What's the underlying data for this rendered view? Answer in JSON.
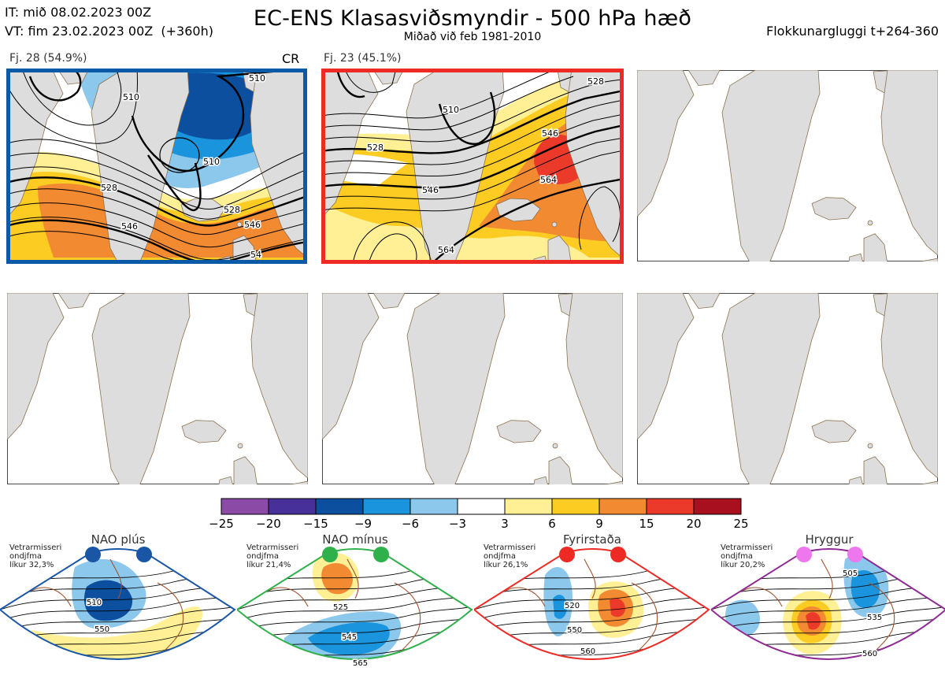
{
  "header": {
    "it_line": "IT: mið 08.02.2023 00Z",
    "vt_line": "VT: fim 23.02.2023 00Z  (+360h)",
    "title": "EC-ENS Klasasviðsmyndir - 500 hPa hæð",
    "subtitle": "Miðað við feb 1981-2010",
    "window": "Flokkunargluggi t+264-360"
  },
  "clusters": [
    {
      "label": "Fj. 28 (54.9%)",
      "regime": "CR",
      "border_color": "#0b5aa8",
      "contour_labels": [
        "510",
        "510",
        "510",
        "528",
        "528",
        "546",
        "546",
        "54"
      ]
    },
    {
      "label": "Fj. 23 (45.1%)",
      "regime": "",
      "border_color": "#ee2a24",
      "contour_labels": [
        "510",
        "528",
        "528",
        "546",
        "546",
        "564",
        "564"
      ]
    }
  ],
  "empty_panels": 4,
  "colorbar": {
    "ticks": [
      "−25",
      "−20",
      "−15",
      "−9",
      "−6",
      "−3",
      "3",
      "6",
      "9",
      "15",
      "20",
      "25"
    ],
    "colors": [
      "#8a4aa6",
      "#47309a",
      "#0b4f9e",
      "#1a94dc",
      "#8cc8ec",
      "#ffffff",
      "#fff096",
      "#fccc22",
      "#f28a32",
      "#ec3a2a",
      "#a81020"
    ]
  },
  "regimes": [
    {
      "name": "NAO plús",
      "note": [
        "Vetrarmisseri",
        "ondjfma",
        "líkur 32,3%"
      ],
      "color": "#1a56a6",
      "labels": [
        "510",
        "550"
      ]
    },
    {
      "name": "NAO mínus",
      "note": [
        "Vetrarmisseri",
        "ondjfma",
        "líkur 21,4%"
      ],
      "color": "#2fb04a",
      "labels": [
        "525",
        "545",
        "565"
      ]
    },
    {
      "name": "Fyrirstaða",
      "note": [
        "Vetrarmisseri",
        "ondjfma",
        "líkur 26,1%"
      ],
      "color": "#ee2a24",
      "labels": [
        "520",
        "550",
        "560"
      ]
    },
    {
      "name": "Hryggur",
      "note": [
        "Vetrarmisseri",
        "ondjfma",
        "líkur 20,2%"
      ],
      "color": "#8e2a94",
      "labels": [
        "505",
        "535",
        "560"
      ]
    }
  ]
}
